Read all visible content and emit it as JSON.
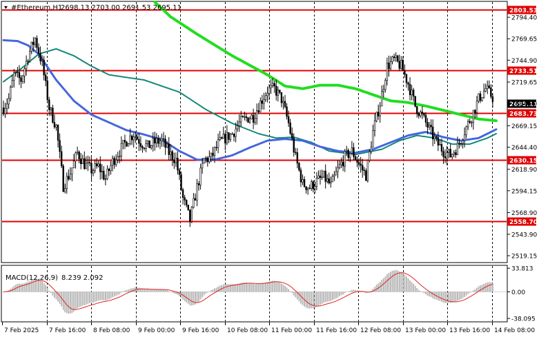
{
  "header": {
    "symbol": "#Ethereum,H1",
    "ohlc": "2698.13 2703.00 2691.53 2695.11"
  },
  "macd": {
    "label": "MACD(12,26,9)",
    "values": "8.239 2.092"
  },
  "colors": {
    "candle": "#000000",
    "level": "#e00000",
    "ma_green": "#22dd22",
    "ma_blue": "#4466dd",
    "ma_teal": "#118877",
    "macd_hist": "#b4b4b4",
    "macd_signal": "#dd2222",
    "grid": "#000000"
  },
  "chart_data": {
    "type": "candlestick",
    "price_axis": {
      "ticks": [
        2794.4,
        2769.65,
        2744.9,
        2719.65,
        2694.9,
        2669.15,
        2644.4,
        2618.9,
        2594.15,
        2568.9,
        2543.9,
        2519.15
      ],
      "range": [
        2512,
        2812
      ]
    },
    "time_axis": {
      "labels": [
        "7 Feb 2025",
        "7 Feb 16:00",
        "8 Feb 08:00",
        "9 Feb 00:00",
        "9 Feb 16:00",
        "10 Feb 08:00",
        "11 Feb 00:00",
        "11 Feb 16:00",
        "12 Feb 08:00",
        "13 Feb 00:00",
        "13 Feb 16:00",
        "14 Feb 08:00"
      ],
      "bars_between_labels": 16
    },
    "levels": [
      {
        "price": 2803.53,
        "label": "2803.53"
      },
      {
        "price": 2733.51,
        "label": "2733.51"
      },
      {
        "price": 2683.73,
        "label": "2683.73"
      },
      {
        "price": 2630.15,
        "label": "2630.15"
      },
      {
        "price": 2558.7,
        "label": "2558.70"
      }
    ],
    "current_price": {
      "price": 2695.11,
      "label": "2695.11"
    },
    "macd_axis": {
      "ticks": [
        {
          "value": 33.813,
          "label": "33.813"
        },
        {
          "value": 0,
          "label": "0.00"
        },
        {
          "value": -38.095,
          "label": "-38.095"
        }
      ],
      "range": [
        -42,
        37
      ]
    },
    "close_keypoints": [
      [
        0,
        2690
      ],
      [
        3,
        2700
      ],
      [
        6,
        2728
      ],
      [
        10,
        2722
      ],
      [
        14,
        2750
      ],
      [
        18,
        2770
      ],
      [
        22,
        2740
      ],
      [
        26,
        2690
      ],
      [
        30,
        2668
      ],
      [
        34,
        2600
      ],
      [
        38,
        2615
      ],
      [
        42,
        2638
      ],
      [
        46,
        2625
      ],
      [
        50,
        2618
      ],
      [
        54,
        2622
      ],
      [
        58,
        2608
      ],
      [
        62,
        2628
      ],
      [
        66,
        2640
      ],
      [
        70,
        2652
      ],
      [
        74,
        2660
      ],
      [
        78,
        2650
      ],
      [
        82,
        2645
      ],
      [
        86,
        2650
      ],
      [
        90,
        2652
      ],
      [
        94,
        2638
      ],
      [
        98,
        2630
      ],
      [
        102,
        2585
      ],
      [
        106,
        2560
      ],
      [
        110,
        2598
      ],
      [
        114,
        2630
      ],
      [
        118,
        2632
      ],
      [
        122,
        2648
      ],
      [
        126,
        2655
      ],
      [
        130,
        2660
      ],
      [
        134,
        2672
      ],
      [
        138,
        2678
      ],
      [
        142,
        2680
      ],
      [
        146,
        2696
      ],
      [
        150,
        2710
      ],
      [
        154,
        2712
      ],
      [
        158,
        2700
      ],
      [
        162,
        2672
      ],
      [
        166,
        2632
      ],
      [
        170,
        2602
      ],
      [
        174,
        2598
      ],
      [
        178,
        2605
      ],
      [
        182,
        2610
      ],
      [
        186,
        2600
      ],
      [
        190,
        2618
      ],
      [
        194,
        2633
      ],
      [
        198,
        2640
      ],
      [
        202,
        2625
      ],
      [
        206,
        2612
      ],
      [
        210,
        2662
      ],
      [
        214,
        2695
      ],
      [
        218,
        2738
      ],
      [
        222,
        2745
      ],
      [
        226,
        2738
      ],
      [
        230,
        2718
      ],
      [
        234,
        2692
      ],
      [
        238,
        2680
      ],
      [
        242,
        2665
      ],
      [
        246,
        2650
      ],
      [
        250,
        2640
      ],
      [
        254,
        2635
      ],
      [
        258,
        2645
      ],
      [
        262,
        2663
      ],
      [
        266,
        2680
      ],
      [
        270,
        2700
      ],
      [
        274,
        2712
      ],
      [
        278,
        2702
      ]
    ],
    "ma_slow_keypoints": [
      [
        86,
        2812
      ],
      [
        95,
        2795
      ],
      [
        110,
        2775
      ],
      [
        130,
        2750
      ],
      [
        150,
        2728
      ],
      [
        160,
        2715
      ],
      [
        170,
        2712
      ],
      [
        180,
        2716
      ],
      [
        190,
        2716
      ],
      [
        200,
        2712
      ],
      [
        210,
        2705
      ],
      [
        220,
        2698
      ],
      [
        230,
        2696
      ],
      [
        240,
        2692
      ],
      [
        250,
        2687
      ],
      [
        260,
        2682
      ],
      [
        270,
        2677
      ],
      [
        280,
        2675
      ]
    ],
    "ma_mid_keypoints": [
      [
        0,
        2720
      ],
      [
        10,
        2735
      ],
      [
        20,
        2752
      ],
      [
        30,
        2758
      ],
      [
        40,
        2750
      ],
      [
        50,
        2738
      ],
      [
        60,
        2728
      ],
      [
        80,
        2722
      ],
      [
        100,
        2708
      ],
      [
        115,
        2688
      ],
      [
        130,
        2672
      ],
      [
        145,
        2660
      ],
      [
        155,
        2655
      ],
      [
        165,
        2656
      ],
      [
        175,
        2650
      ],
      [
        185,
        2640
      ],
      [
        200,
        2636
      ],
      [
        215,
        2642
      ],
      [
        225,
        2652
      ],
      [
        235,
        2658
      ],
      [
        245,
        2655
      ],
      [
        255,
        2648
      ],
      [
        265,
        2648
      ],
      [
        275,
        2655
      ],
      [
        280,
        2660
      ]
    ],
    "ma_fast_keypoints": [
      [
        0,
        2768
      ],
      [
        8,
        2767
      ],
      [
        14,
        2762
      ],
      [
        20,
        2752
      ],
      [
        30,
        2722
      ],
      [
        40,
        2698
      ],
      [
        50,
        2682
      ],
      [
        60,
        2673
      ],
      [
        70,
        2664
      ],
      [
        80,
        2659
      ],
      [
        90,
        2653
      ],
      [
        100,
        2640
      ],
      [
        110,
        2630
      ],
      [
        120,
        2630
      ],
      [
        130,
        2635
      ],
      [
        140,
        2644
      ],
      [
        150,
        2652
      ],
      [
        160,
        2654
      ],
      [
        170,
        2652
      ],
      [
        180,
        2645
      ],
      [
        190,
        2640
      ],
      [
        200,
        2638
      ],
      [
        210,
        2642
      ],
      [
        220,
        2650
      ],
      [
        230,
        2658
      ],
      [
        240,
        2662
      ],
      [
        250,
        2656
      ],
      [
        260,
        2652
      ],
      [
        270,
        2655
      ],
      [
        280,
        2665
      ]
    ]
  }
}
